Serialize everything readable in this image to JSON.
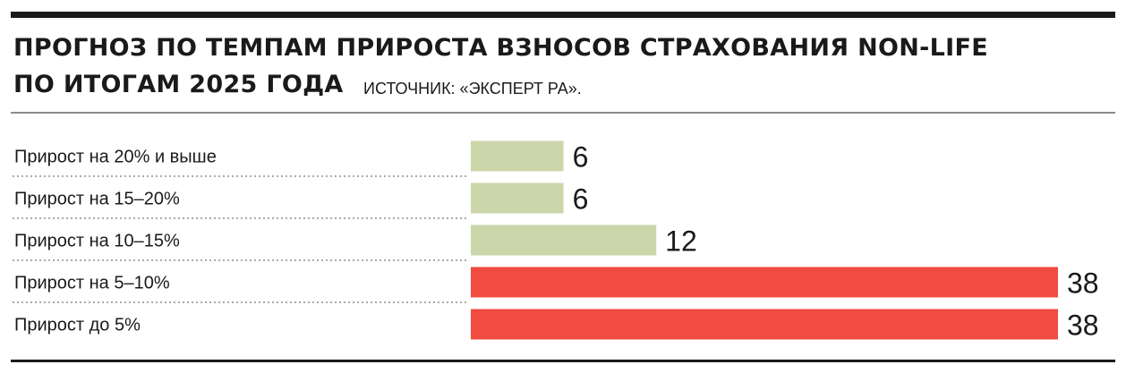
{
  "title": {
    "line1": "ПРОГНОЗ ПО ТЕМПАМ ПРИРОСТА ВЗНОСОВ СТРАХОВАНИЯ NON-LIFE",
    "line2": "ПО ИТОГАМ 2025 ГОДА",
    "source": "ИСТОЧНИК: «ЭКСПЕРТ РА»."
  },
  "chart_data": {
    "type": "bar",
    "orientation": "horizontal",
    "categories": [
      "Прирост на 20% и выше",
      "Прирост на 15–20%",
      "Прирост на 10–15%",
      "Прирост на 5–10%",
      "Прирост до 5%"
    ],
    "values": [
      6,
      6,
      12,
      38,
      38
    ],
    "colors": [
      "#cbd6ab",
      "#cbd6ab",
      "#cbd6ab",
      "#f24b3f",
      "#f24b3f"
    ],
    "data_labels": [
      "6",
      "6",
      "12",
      "38",
      "38"
    ],
    "xlim": [
      0,
      38
    ],
    "grid": false,
    "legend": "none"
  }
}
